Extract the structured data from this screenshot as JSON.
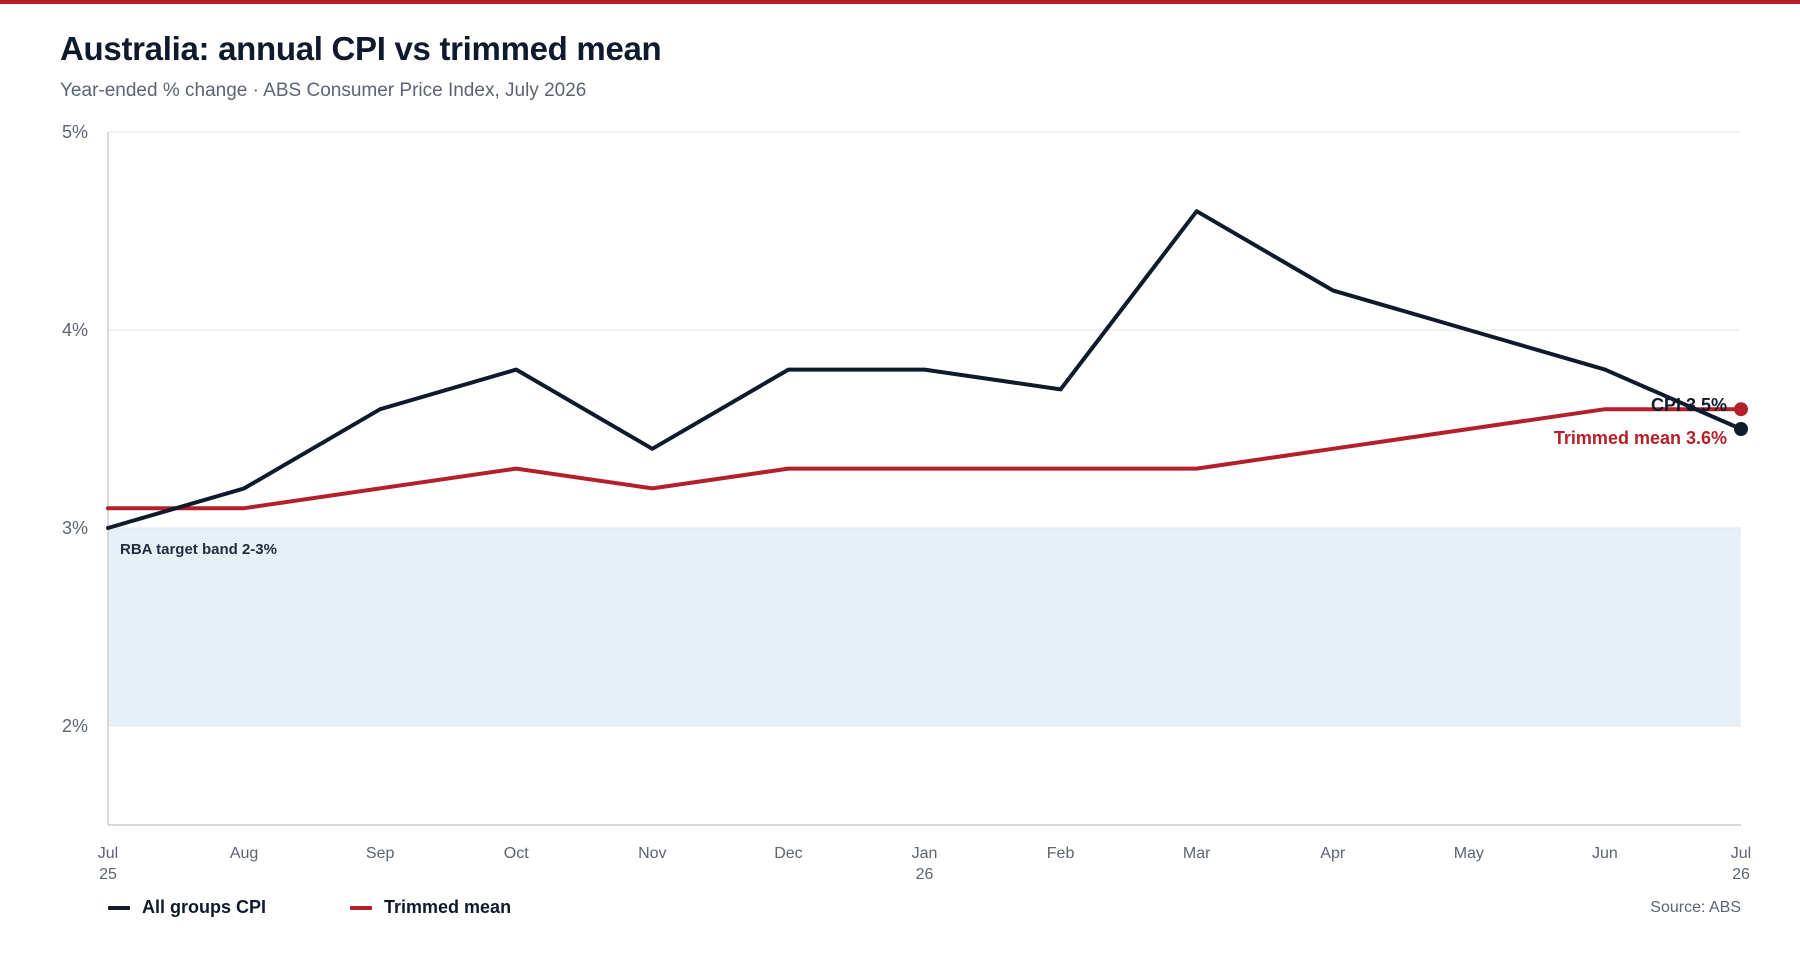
{
  "header": {
    "title": "Australia: annual CPI vs trimmed mean",
    "subtitle": "Year-ended % change · ABS Consumer Price Index, July 2026"
  },
  "colors": {
    "cpi": "#0f1b2d",
    "trimmed": "#b3202a",
    "band": "#e8f0f7",
    "grid": "#e3e6ea",
    "axis": "#d6d9de",
    "tick_text": "#5b6472"
  },
  "legend": {
    "cpi_label": "All groups CPI",
    "trimmed_label": "Trimmed mean"
  },
  "source": "Source: ABS",
  "chart_data": {
    "type": "line",
    "x": [
      "Jul 25",
      "Aug",
      "Sep",
      "Oct",
      "Nov",
      "Dec",
      "Jan 26",
      "Feb",
      "Mar",
      "Apr",
      "May",
      "Jun",
      "Jul 26"
    ],
    "x_tick_labels": [
      [
        "Jul",
        "25"
      ],
      [
        "Aug"
      ],
      [
        "Sep"
      ],
      [
        "Oct"
      ],
      [
        "Nov"
      ],
      [
        "Dec"
      ],
      [
        "Jan",
        "26"
      ],
      [
        "Feb"
      ],
      [
        "Mar"
      ],
      [
        "Apr"
      ],
      [
        "May"
      ],
      [
        "Jun"
      ],
      [
        "Jul",
        "26"
      ]
    ],
    "y_ticks": [
      2,
      3,
      4,
      5
    ],
    "y_tick_labels": [
      "2%",
      "3%",
      "4%",
      "5%"
    ],
    "ylim": [
      1.5,
      5
    ],
    "grid": true,
    "target_band": {
      "range": [
        2,
        3
      ],
      "label": "RBA target band 2-3%"
    },
    "series": [
      {
        "name": "All groups CPI",
        "values": [
          3.0,
          3.2,
          3.6,
          3.8,
          3.4,
          3.8,
          3.8,
          3.7,
          4.6,
          4.2,
          4.0,
          3.8,
          3.5
        ],
        "end_label": "CPI 3.5%"
      },
      {
        "name": "Trimmed mean",
        "values": [
          3.1,
          3.1,
          3.2,
          3.3,
          3.2,
          3.3,
          3.3,
          3.3,
          3.3,
          3.4,
          3.5,
          3.6,
          3.6
        ],
        "end_label": "Trimmed mean 3.6%"
      }
    ]
  }
}
